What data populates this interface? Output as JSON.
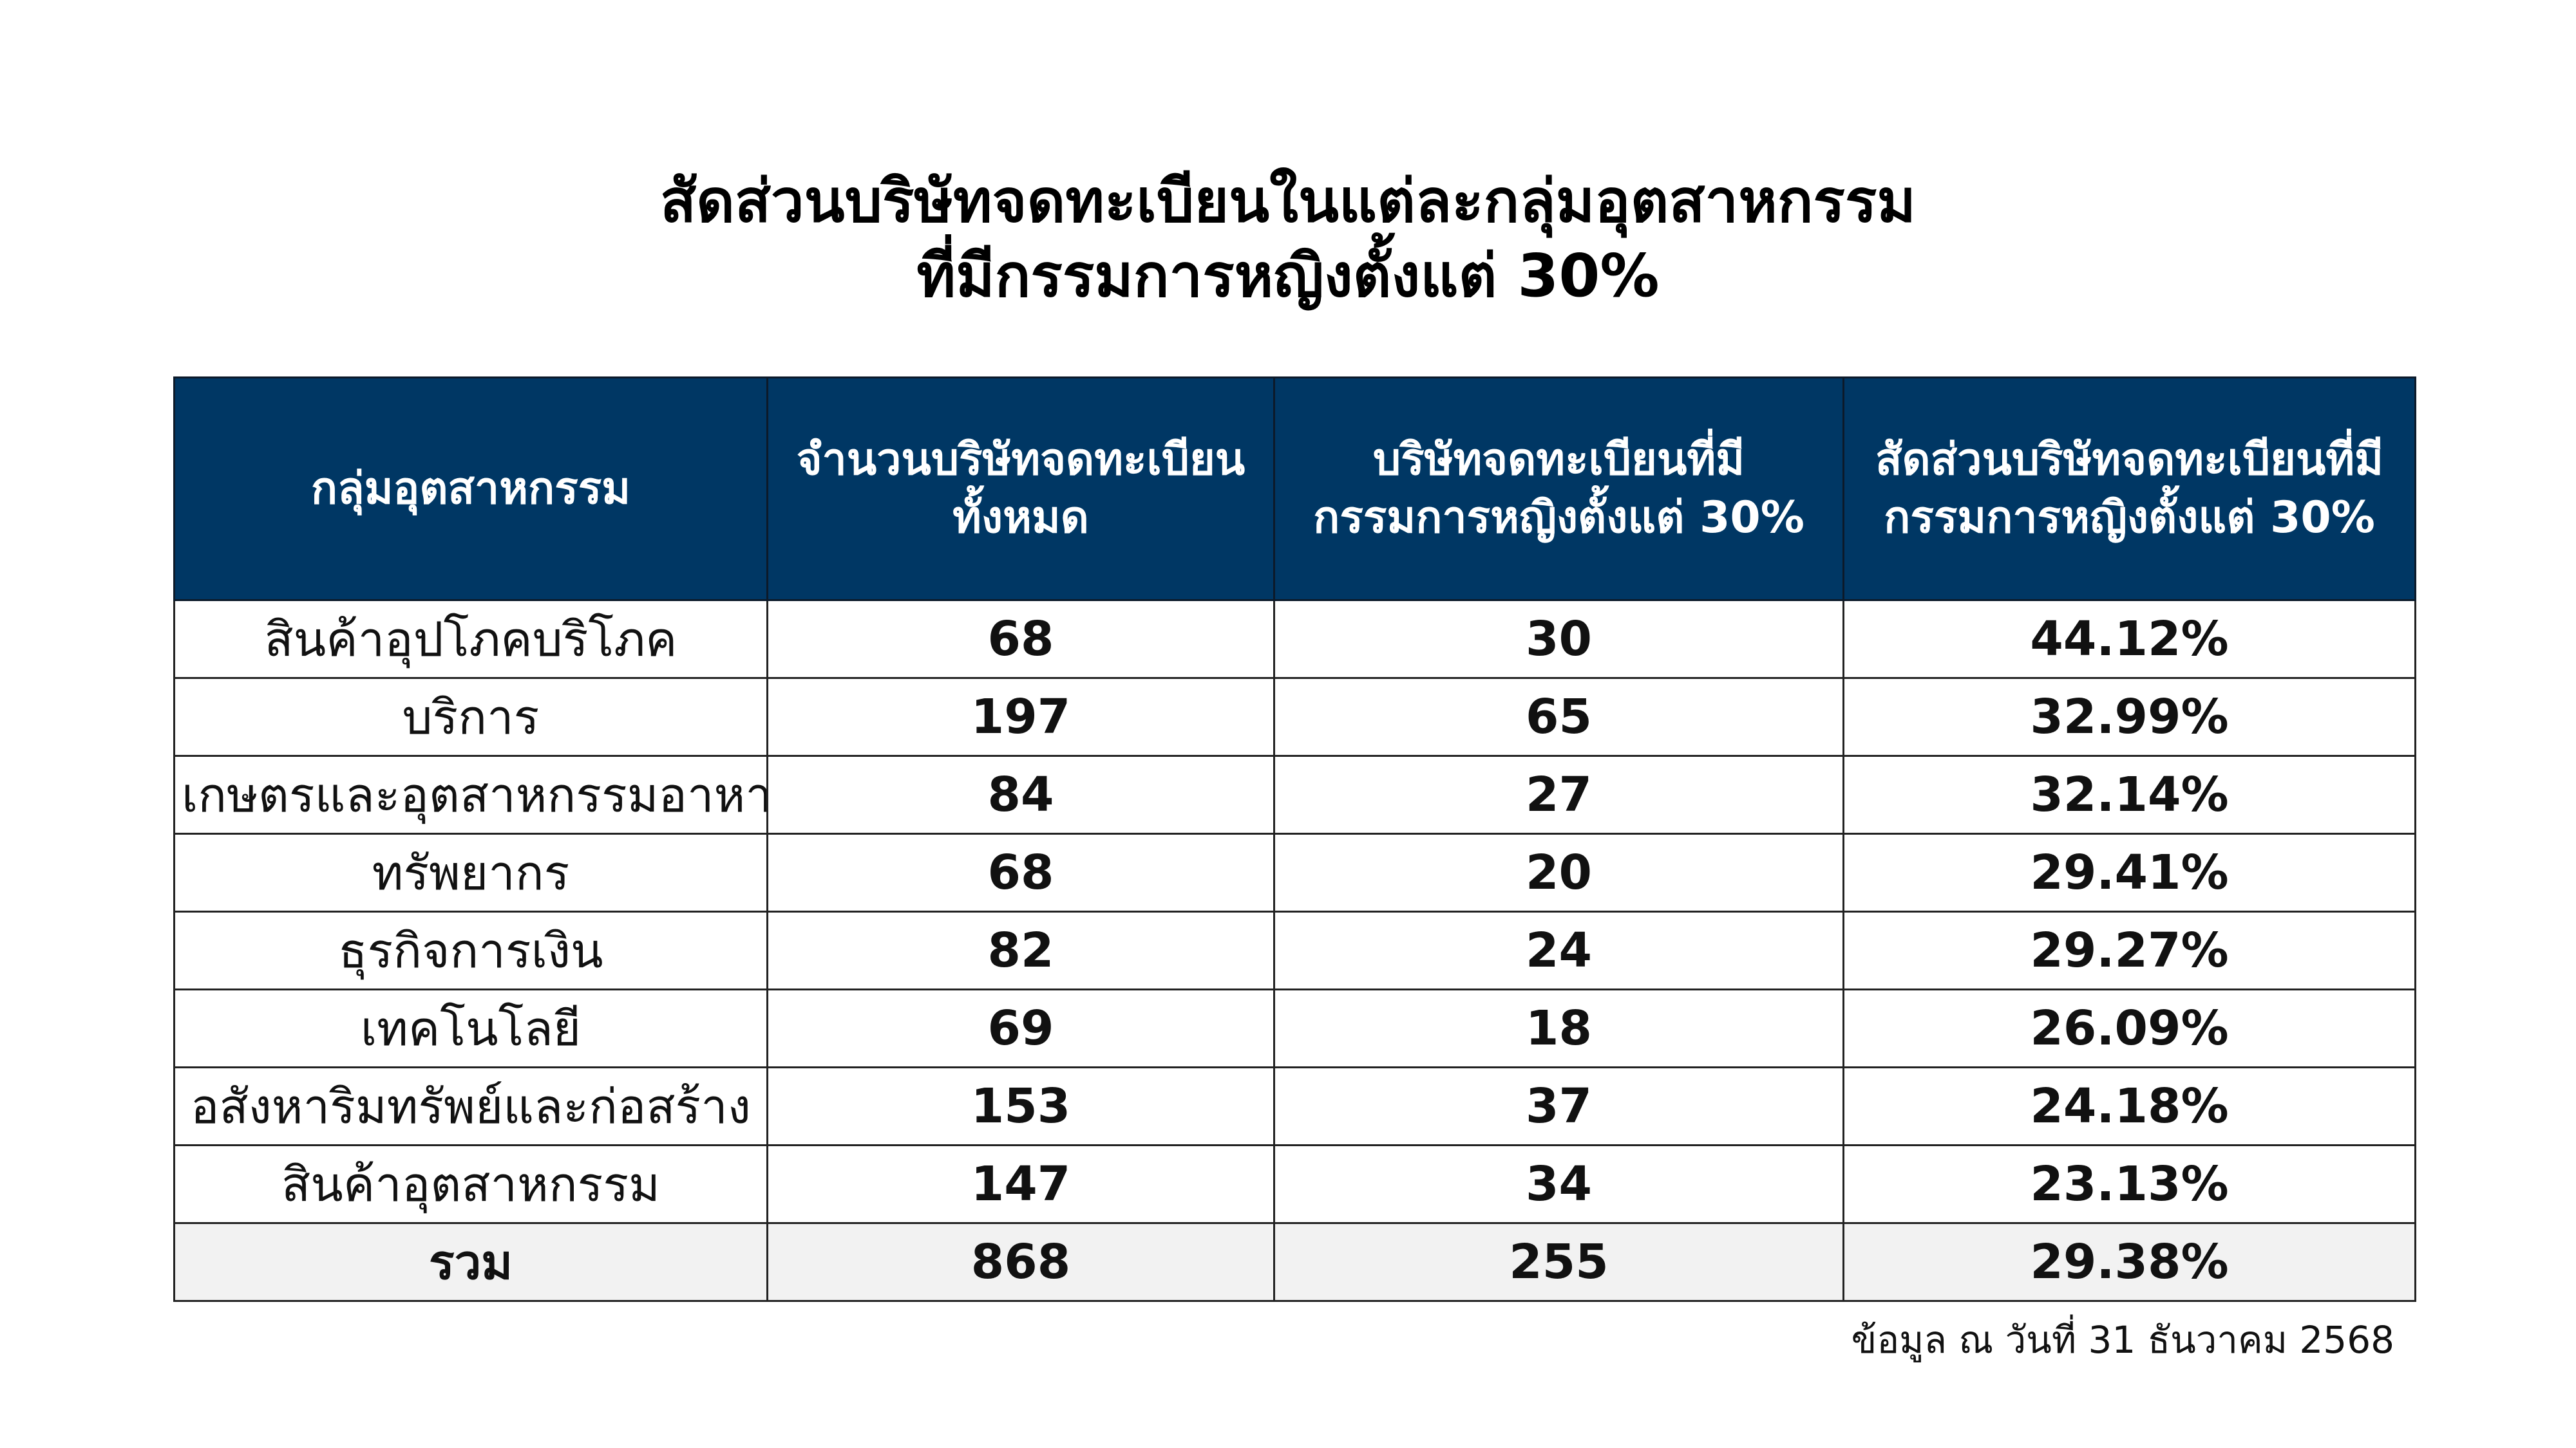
{
  "title": {
    "line1": "สัดส่วนบริษัทจดทะเบียนในแต่ละกลุ่มอุตสาหกรรม",
    "line2": "ที่มีกรรมการหญิงตั้งแต่ 30%"
  },
  "table": {
    "headers": [
      {
        "line1": "กลุ่มอุตสาหกรรม",
        "line2": ""
      },
      {
        "line1": "จำนวนบริษัทจดทะเบียน",
        "line2": "ทั้งหมด"
      },
      {
        "line1": "บริษัทจดทะเบียนที่มี",
        "line2": "กรรมการหญิงตั้งแต่ 30%"
      },
      {
        "line1": "สัดส่วนบริษัทจดทะเบียนที่มี",
        "line2": "กรรมการหญิงตั้งแต่ 30%"
      }
    ],
    "rows": [
      [
        "สินค้าอุปโภคบริโภค",
        "68",
        "30",
        "44.12%"
      ],
      [
        "บริการ",
        "197",
        "65",
        "32.99%"
      ],
      [
        "เกษตรและอุตสาหกรรมอาหาร",
        "84",
        "27",
        "32.14%"
      ],
      [
        "ทรัพยากร",
        "68",
        "20",
        "29.41%"
      ],
      [
        "ธุรกิจการเงิน",
        "82",
        "24",
        "29.27%"
      ],
      [
        "เทคโนโลยี",
        "69",
        "18",
        "26.09%"
      ],
      [
        "อสังหาริมทรัพย์และก่อสร้าง",
        "153",
        "37",
        "24.18%"
      ],
      [
        "สินค้าอุตสาหกรรม",
        "147",
        "34",
        "23.13%"
      ]
    ],
    "total": [
      "รวม",
      "868",
      "255",
      "29.38%"
    ]
  },
  "footer": "ข้อมูล ณ วันที่ 31 ธันวาคม 2568",
  "colors": {
    "header_bg": "#003764",
    "total_bg": "#f2f2f2"
  }
}
